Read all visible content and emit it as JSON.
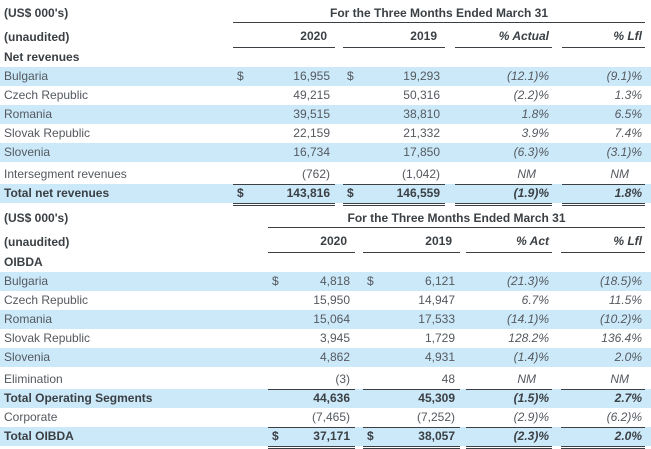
{
  "colors": {
    "stripe": "#cce9f9",
    "text": "#54595f",
    "text_dark": "#3b4045",
    "line": "#3b4045"
  },
  "tables": [
    {
      "units": "(US$ 000's)",
      "period": "For the Three Months Ended March 31",
      "subtitle": "(unaudited)",
      "section": "Net revenues",
      "columns": [
        "2020",
        "2019",
        "% Actual",
        "% Lfl"
      ],
      "rows": [
        {
          "label": "Bulgaria",
          "cur1": "$",
          "v1": "16,955",
          "cur2": "$",
          "v2": "19,293",
          "act": "(12.1)%",
          "lfl": "(9.1)%",
          "hl": true
        },
        {
          "label": "Czech Republic",
          "v1": "49,215",
          "v2": "50,316",
          "act": "(2.2)%",
          "lfl": "1.3%"
        },
        {
          "label": "Romania",
          "v1": "39,515",
          "v2": "38,810",
          "act": "1.8%",
          "lfl": "6.5%",
          "hl": true
        },
        {
          "label": "Slovak Republic",
          "v1": "22,159",
          "v2": "21,332",
          "act": "3.9%",
          "lfl": "7.4%"
        },
        {
          "label": "Slovenia",
          "v1": "16,734",
          "v2": "17,850",
          "act": "(6.3)%",
          "lfl": "(3.1)%",
          "hl": true
        },
        {
          "spacer": true
        },
        {
          "label": "Intersegment revenues",
          "v1": "(762)",
          "v2": "(1,042)",
          "act": "NM",
          "lfl": "NM",
          "rule": "single"
        },
        {
          "label": "Total net revenues",
          "cur1": "$",
          "v1": "143,816",
          "cur2": "$",
          "v2": "146,559",
          "act": "(1.9)%",
          "lfl": "1.8%",
          "hl": true,
          "bold": true,
          "rule": "double"
        }
      ]
    },
    {
      "units": "(US$ 000's)",
      "period": "For the Three Months Ended March 31",
      "subtitle": "(unaudited)",
      "section": "OIBDA",
      "columns": [
        "2020",
        "2019",
        "% Act",
        "% Lfl"
      ],
      "rows": [
        {
          "label": "Bulgaria",
          "cur1": "$",
          "v1": "4,818",
          "cur2": "$",
          "v2": "6,121",
          "act": "(21.3)%",
          "lfl": "(18.5)%",
          "hl": true
        },
        {
          "label": "Czech Republic",
          "v1": "15,950",
          "v2": "14,947",
          "act": "6.7%",
          "lfl": "11.5%"
        },
        {
          "label": "Romania",
          "v1": "15,064",
          "v2": "17,533",
          "act": "(14.1)%",
          "lfl": "(10.2)%",
          "hl": true
        },
        {
          "label": "Slovak Republic",
          "v1": "3,945",
          "v2": "1,729",
          "act": "128.2%",
          "lfl": "136.4%"
        },
        {
          "label": "Slovenia",
          "v1": "4,862",
          "v2": "4,931",
          "act": "(1.4)%",
          "lfl": "2.0%",
          "hl": true
        },
        {
          "spacer": true
        },
        {
          "label": "Elimination",
          "v1": "(3)",
          "v2": "48",
          "act": "NM",
          "lfl": "NM",
          "rule": "single"
        },
        {
          "label": "Total Operating Segments",
          "v1": "44,636",
          "v2": "45,309",
          "act": "(1.5)%",
          "lfl": "2.7%",
          "hl": true,
          "bold": true
        },
        {
          "label": "Corporate",
          "v1": "(7,465)",
          "v2": "(7,252)",
          "act": "(2.9)%",
          "lfl": "(6.2)%",
          "rule": "single"
        },
        {
          "label": "Total OIBDA",
          "cur1": "$",
          "v1": "37,171",
          "cur2": "$",
          "v2": "38,057",
          "act": "(2.3)%",
          "lfl": "2.0%",
          "hl": true,
          "bold": true,
          "rule": "double"
        }
      ]
    }
  ]
}
